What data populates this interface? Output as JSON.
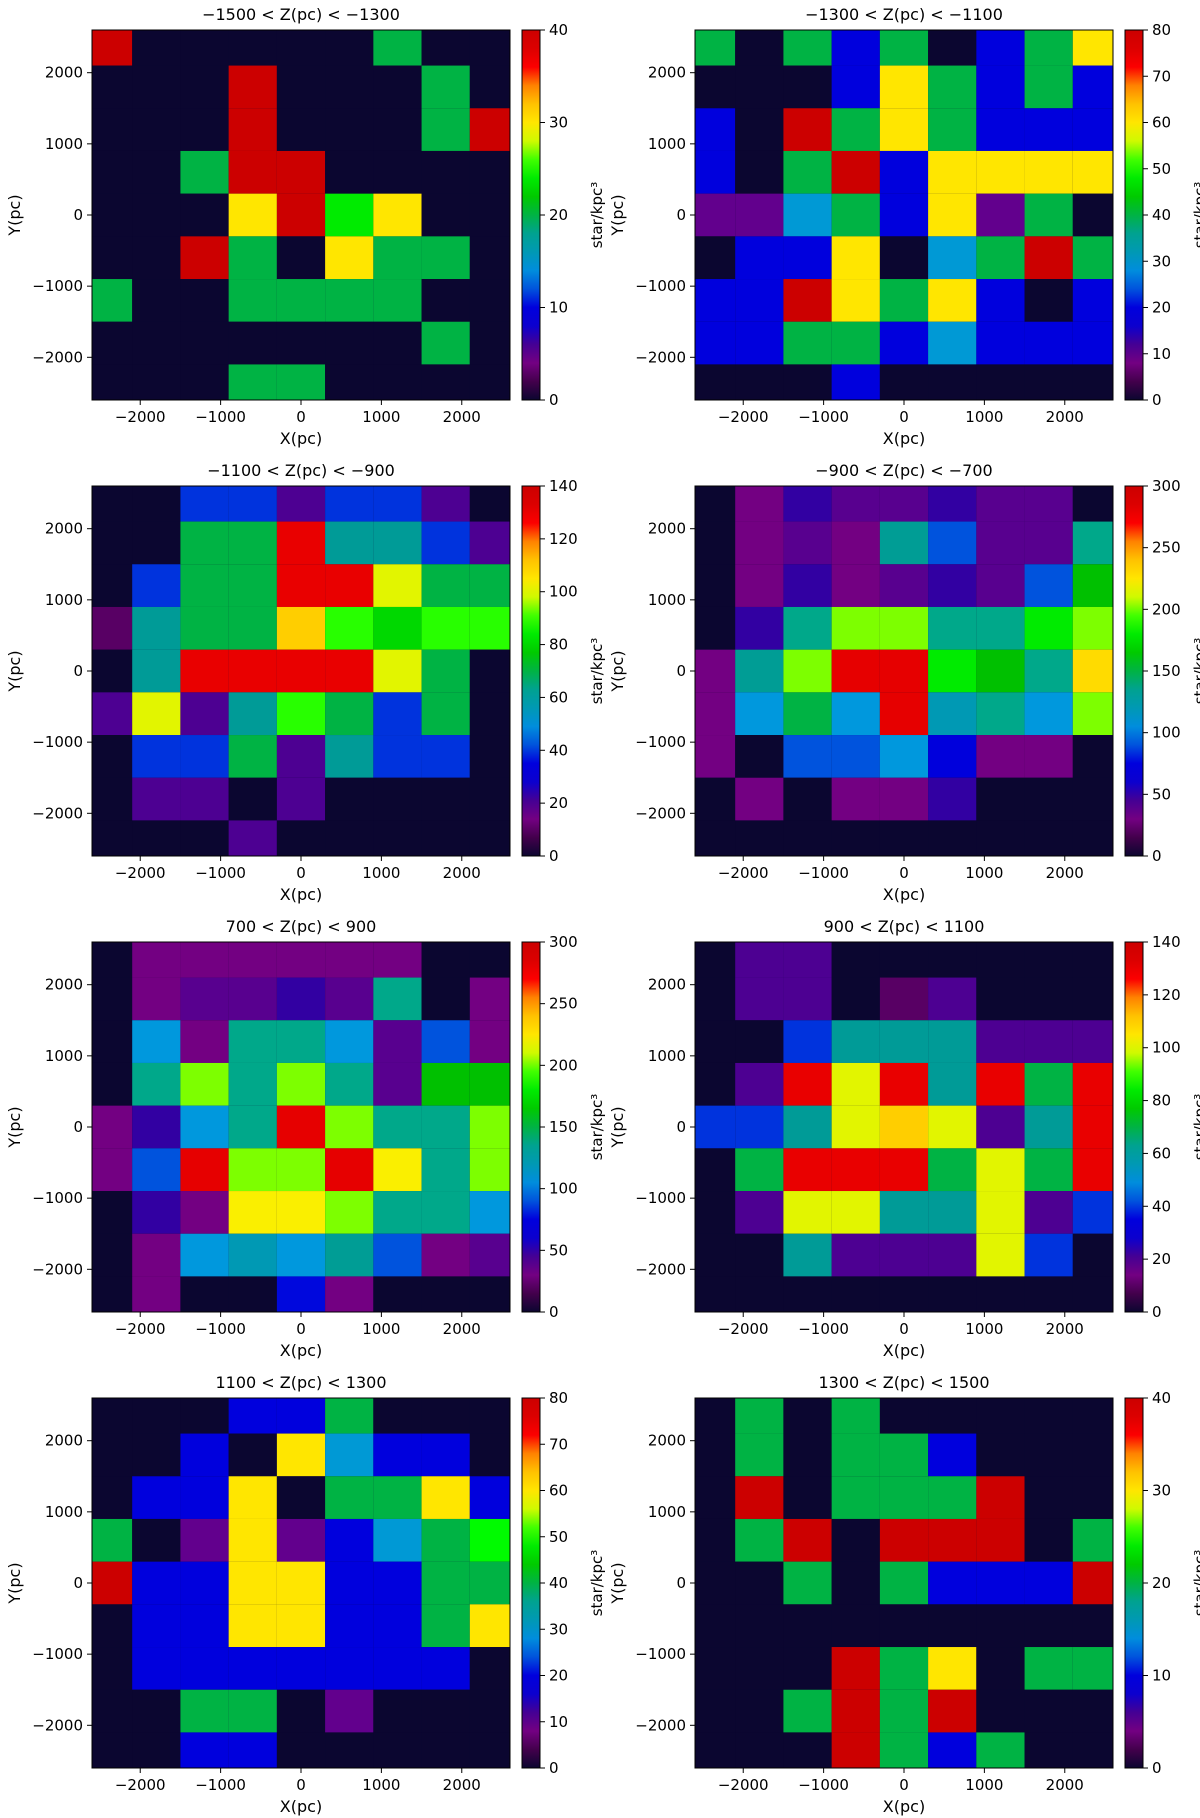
{
  "chart_data": [
    {
      "type": "heatmap",
      "title": "−1500 < Z(pc) < −1300",
      "xlabel": "X(pc)",
      "ylabel": "Y(pc)",
      "colorbar_label": "star/kpc³",
      "vmin": 0,
      "vmax": 40,
      "colorbar_ticks": [
        "0",
        "10",
        "20",
        "30",
        "40"
      ],
      "xticks": [
        "−2000",
        "−1000",
        "0",
        "1000",
        "2000"
      ],
      "yticks": [
        "−2000",
        "−1000",
        "0",
        "1000",
        "2000"
      ],
      "xlim": [
        -2600,
        2600
      ],
      "ylim": [
        -2600,
        2600
      ],
      "bin_size_pc": 600,
      "x_start": -2700,
      "y_start": 2700,
      "grid": [
        [
          40,
          0,
          0,
          0,
          0,
          0,
          20,
          0,
          0
        ],
        [
          0,
          0,
          0,
          40,
          0,
          0,
          0,
          20,
          0
        ],
        [
          0,
          0,
          0,
          40,
          0,
          0,
          0,
          20,
          40
        ],
        [
          0,
          0,
          20,
          40,
          40,
          0,
          0,
          0,
          0
        ],
        [
          0,
          0,
          0,
          30,
          40,
          24,
          30,
          0,
          0
        ],
        [
          0,
          0,
          40,
          20,
          0,
          30,
          20,
          20,
          0
        ],
        [
          20,
          0,
          0,
          20,
          20,
          20,
          20,
          0,
          0
        ],
        [
          0,
          0,
          0,
          0,
          0,
          0,
          0,
          20,
          0
        ],
        [
          0,
          0,
          0,
          20,
          20,
          0,
          0,
          0,
          0
        ]
      ]
    },
    {
      "type": "heatmap",
      "title": "−1300 < Z(pc) < −1100",
      "xlabel": "X(pc)",
      "ylabel": "Y(pc)",
      "colorbar_label": "star/kpc³",
      "vmin": 0,
      "vmax": 80,
      "colorbar_ticks": [
        "0",
        "10",
        "20",
        "30",
        "40",
        "50",
        "60",
        "70",
        "80"
      ],
      "xticks": [
        "−2000",
        "−1000",
        "0",
        "1000",
        "2000"
      ],
      "yticks": [
        "−2000",
        "−1000",
        "0",
        "1000",
        "2000"
      ],
      "xlim": [
        -2600,
        2600
      ],
      "ylim": [
        -2600,
        2600
      ],
      "bin_size_pc": 600,
      "x_start": -2700,
      "y_start": 2700,
      "grid": [
        [
          40,
          0,
          40,
          20,
          40,
          0,
          20,
          40,
          60
        ],
        [
          0,
          0,
          0,
          20,
          60,
          40,
          20,
          40,
          20
        ],
        [
          20,
          0,
          80,
          40,
          60,
          40,
          20,
          20,
          20
        ],
        [
          20,
          0,
          40,
          80,
          20,
          60,
          60,
          60,
          60
        ],
        [
          10,
          10,
          30,
          40,
          20,
          60,
          10,
          40,
          0
        ],
        [
          0,
          20,
          20,
          60,
          0,
          30,
          40,
          80,
          40
        ],
        [
          20,
          20,
          80,
          60,
          40,
          60,
          20,
          0,
          20
        ],
        [
          20,
          20,
          40,
          40,
          20,
          30,
          20,
          20,
          20
        ],
        [
          0,
          0,
          0,
          20,
          0,
          0,
          0,
          0,
          0
        ]
      ]
    },
    {
      "type": "heatmap",
      "title": "−1100 < Z(pc) < −900",
      "xlabel": "X(pc)",
      "ylabel": "Y(pc)",
      "colorbar_label": "star/kpc³",
      "vmin": 0,
      "vmax": 140,
      "colorbar_ticks": [
        "0",
        "20",
        "40",
        "60",
        "80",
        "100",
        "120",
        "140"
      ],
      "xticks": [
        "−2000",
        "−1000",
        "0",
        "1000",
        "2000"
      ],
      "yticks": [
        "−2000",
        "−1000",
        "0",
        "1000",
        "2000"
      ],
      "xlim": [
        -2600,
        2600
      ],
      "ylim": [
        -2600,
        2600
      ],
      "bin_size_pc": 600,
      "x_start": -2700,
      "y_start": 2700,
      "grid": [
        [
          0,
          0,
          40,
          40,
          20,
          40,
          40,
          20,
          0
        ],
        [
          0,
          0,
          70,
          70,
          130,
          60,
          60,
          40,
          20
        ],
        [
          0,
          40,
          70,
          70,
          130,
          130,
          100,
          70,
          70
        ],
        [
          10,
          60,
          70,
          70,
          110,
          90,
          80,
          90,
          90
        ],
        [
          0,
          60,
          130,
          130,
          130,
          130,
          100,
          70,
          0
        ],
        [
          20,
          100,
          20,
          60,
          90,
          70,
          40,
          70,
          0
        ],
        [
          0,
          40,
          40,
          70,
          20,
          60,
          40,
          40,
          0
        ],
        [
          0,
          20,
          20,
          0,
          20,
          0,
          0,
          0,
          0
        ],
        [
          0,
          0,
          0,
          20,
          0,
          0,
          0,
          0,
          0
        ]
      ]
    },
    {
      "type": "heatmap",
      "title": "−900 < Z(pc) < −700",
      "xlabel": "X(pc)",
      "ylabel": "Y(pc)",
      "colorbar_label": "star/kpc³",
      "vmin": 0,
      "vmax": 300,
      "colorbar_ticks": [
        "0",
        "50",
        "100",
        "150",
        "200",
        "250",
        "300"
      ],
      "xticks": [
        "−2000",
        "−1000",
        "0",
        "1000",
        "2000"
      ],
      "yticks": [
        "−2000",
        "−1000",
        "0",
        "1000",
        "2000"
      ],
      "xlim": [
        -2600,
        2600
      ],
      "ylim": [
        -2600,
        2600
      ],
      "bin_size_pc": 600,
      "x_start": -2700,
      "y_start": 2700,
      "grid": [
        [
          0,
          30,
          50,
          40,
          40,
          50,
          40,
          40,
          0
        ],
        [
          0,
          30,
          40,
          30,
          130,
          90,
          40,
          40,
          140
        ],
        [
          0,
          30,
          50,
          30,
          40,
          50,
          40,
          90,
          160
        ],
        [
          0,
          50,
          140,
          200,
          200,
          140,
          140,
          180,
          200
        ],
        [
          30,
          130,
          200,
          280,
          280,
          180,
          160,
          140,
          230
        ],
        [
          30,
          110,
          150,
          110,
          280,
          120,
          140,
          110,
          200
        ],
        [
          30,
          0,
          90,
          90,
          110,
          70,
          30,
          30,
          0
        ],
        [
          0,
          30,
          0,
          30,
          30,
          50,
          0,
          0,
          0
        ],
        [
          0,
          0,
          0,
          0,
          0,
          0,
          0,
          0,
          0
        ]
      ]
    },
    {
      "type": "heatmap",
      "title": "700 < Z(pc) < 900",
      "xlabel": "X(pc)",
      "ylabel": "Y(pc)",
      "colorbar_label": "star/kpc³",
      "vmin": 0,
      "vmax": 300,
      "colorbar_ticks": [
        "0",
        "50",
        "100",
        "150",
        "200",
        "250",
        "300"
      ],
      "xticks": [
        "−2000",
        "−1000",
        "0",
        "1000",
        "2000"
      ],
      "yticks": [
        "−2000",
        "−1000",
        "0",
        "1000",
        "2000"
      ],
      "xlim": [
        -2600,
        2600
      ],
      "ylim": [
        -2600,
        2600
      ],
      "bin_size_pc": 600,
      "x_start": -2700,
      "y_start": 2700,
      "grid": [
        [
          0,
          30,
          30,
          30,
          30,
          30,
          30,
          0,
          0
        ],
        [
          0,
          30,
          40,
          40,
          50,
          40,
          140,
          0,
          30
        ],
        [
          0,
          110,
          30,
          140,
          140,
          110,
          40,
          90,
          30
        ],
        [
          0,
          140,
          200,
          140,
          200,
          140,
          40,
          160,
          160
        ],
        [
          30,
          50,
          110,
          140,
          280,
          200,
          140,
          140,
          200
        ],
        [
          30,
          90,
          280,
          200,
          200,
          280,
          220,
          140,
          200
        ],
        [
          0,
          50,
          30,
          220,
          220,
          200,
          140,
          140,
          110
        ],
        [
          0,
          30,
          110,
          120,
          110,
          130,
          90,
          30,
          40
        ],
        [
          0,
          30,
          0,
          0,
          80,
          30,
          0,
          0,
          0
        ]
      ]
    },
    {
      "type": "heatmap",
      "title": "900 < Z(pc) < 1100",
      "xlabel": "X(pc)",
      "ylabel": "Y(pc)",
      "colorbar_label": "star/kpc³",
      "vmin": 0,
      "vmax": 140,
      "colorbar_ticks": [
        "0",
        "20",
        "40",
        "60",
        "80",
        "100",
        "120",
        "140"
      ],
      "xticks": [
        "−2000",
        "−1000",
        "0",
        "1000",
        "2000"
      ],
      "yticks": [
        "−2000",
        "−1000",
        "0",
        "1000",
        "2000"
      ],
      "xlim": [
        -2600,
        2600
      ],
      "ylim": [
        -2600,
        2600
      ],
      "bin_size_pc": 600,
      "x_start": -2700,
      "y_start": 2700,
      "grid": [
        [
          0,
          20,
          20,
          0,
          0,
          0,
          0,
          0,
          0
        ],
        [
          0,
          20,
          20,
          0,
          10,
          20,
          0,
          0,
          0
        ],
        [
          0,
          0,
          40,
          60,
          60,
          60,
          20,
          20,
          20
        ],
        [
          0,
          20,
          130,
          100,
          130,
          60,
          130,
          70,
          130
        ],
        [
          40,
          40,
          60,
          100,
          110,
          100,
          20,
          60,
          130
        ],
        [
          0,
          70,
          130,
          130,
          130,
          70,
          100,
          70,
          130
        ],
        [
          0,
          20,
          100,
          100,
          60,
          60,
          100,
          20,
          40
        ],
        [
          0,
          0,
          60,
          20,
          20,
          20,
          100,
          40,
          0
        ],
        [
          0,
          0,
          0,
          0,
          0,
          0,
          0,
          0,
          0
        ]
      ]
    },
    {
      "type": "heatmap",
      "title": "1100 < Z(pc) < 1300",
      "xlabel": "X(pc)",
      "ylabel": "Y(pc)",
      "colorbar_label": "star/kpc³",
      "vmin": 0,
      "vmax": 80,
      "colorbar_ticks": [
        "0",
        "10",
        "20",
        "30",
        "40",
        "50",
        "60",
        "70",
        "80"
      ],
      "xticks": [
        "−2000",
        "−1000",
        "0",
        "1000",
        "2000"
      ],
      "yticks": [
        "−2000",
        "−1000",
        "0",
        "1000",
        "2000"
      ],
      "xlim": [
        -2600,
        2600
      ],
      "ylim": [
        -2600,
        2600
      ],
      "bin_size_pc": 600,
      "x_start": -2700,
      "y_start": 2700,
      "grid": [
        [
          0,
          0,
          0,
          20,
          20,
          40,
          0,
          0,
          0
        ],
        [
          0,
          0,
          20,
          0,
          60,
          30,
          20,
          20,
          0
        ],
        [
          0,
          20,
          20,
          60,
          0,
          40,
          40,
          60,
          20
        ],
        [
          40,
          0,
          10,
          60,
          10,
          20,
          30,
          40,
          50
        ],
        [
          80,
          20,
          20,
          60,
          60,
          20,
          20,
          40,
          40
        ],
        [
          0,
          20,
          20,
          60,
          60,
          20,
          20,
          40,
          60
        ],
        [
          0,
          20,
          20,
          20,
          20,
          20,
          20,
          20,
          0
        ],
        [
          0,
          0,
          40,
          40,
          0,
          10,
          0,
          0,
          0
        ],
        [
          0,
          0,
          20,
          20,
          0,
          0,
          0,
          0,
          0
        ]
      ]
    },
    {
      "type": "heatmap",
      "title": "1300 < Z(pc) < 1500",
      "xlabel": "X(pc)",
      "ylabel": "Y(pc)",
      "colorbar_label": "star/kpc³",
      "vmin": 0,
      "vmax": 40,
      "colorbar_ticks": [
        "0",
        "10",
        "20",
        "30",
        "40"
      ],
      "xticks": [
        "−2000",
        "−1000",
        "0",
        "1000",
        "2000"
      ],
      "yticks": [
        "−2000",
        "−1000",
        "0",
        "1000",
        "2000"
      ],
      "xlim": [
        -2600,
        2600
      ],
      "ylim": [
        -2600,
        2600
      ],
      "bin_size_pc": 600,
      "x_start": -2700,
      "y_start": 2700,
      "grid": [
        [
          0,
          20,
          0,
          20,
          0,
          0,
          0,
          0,
          0
        ],
        [
          0,
          20,
          0,
          20,
          20,
          10,
          0,
          0,
          0
        ],
        [
          0,
          40,
          0,
          20,
          20,
          20,
          40,
          0,
          0
        ],
        [
          0,
          20,
          40,
          0,
          40,
          40,
          40,
          0,
          20
        ],
        [
          0,
          0,
          20,
          0,
          20,
          10,
          10,
          10,
          40
        ],
        [
          0,
          0,
          0,
          0,
          0,
          0,
          0,
          0,
          0
        ],
        [
          0,
          0,
          0,
          40,
          20,
          30,
          0,
          20,
          20
        ],
        [
          0,
          0,
          20,
          40,
          20,
          40,
          0,
          0,
          0
        ],
        [
          0,
          0,
          0,
          40,
          20,
          10,
          20,
          0,
          0
        ]
      ]
    }
  ]
}
